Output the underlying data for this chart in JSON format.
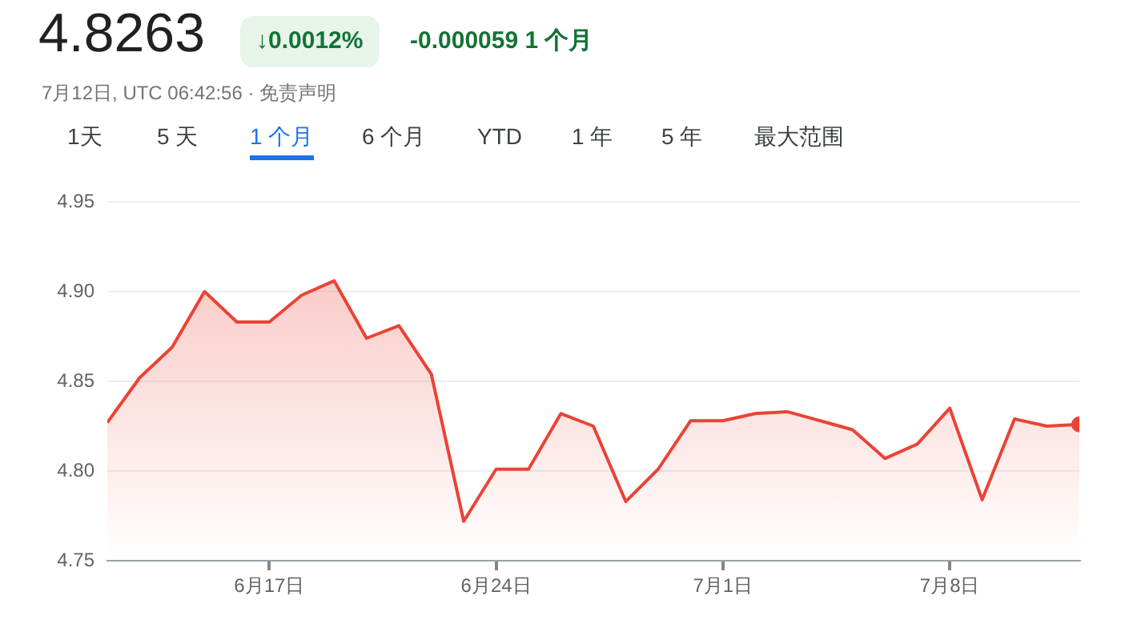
{
  "chart_data": {
    "type": "area",
    "title": "4.8263",
    "subtitle": "7月12日, UTC 06:42:56 · 免责声明",
    "annotations": [
      "↓0.0012%",
      "-0.000059",
      "1 个月",
      "1天",
      "5 天",
      "1 个月",
      "6 个月",
      "YTD",
      "1 年",
      "5 年",
      "最大范围"
    ],
    "x": [
      "--06-12",
      "--06-13",
      "--06-14",
      "--06-15",
      "--06-16",
      "--06-17",
      "--06-18",
      "--06-19",
      "--06-20",
      "--06-21",
      "--06-22",
      "--06-23",
      "--06-24",
      "--06-25",
      "--06-26",
      "--06-27",
      "--06-28",
      "--06-29",
      "--06-30",
      "--07-01",
      "--07-02",
      "--07-03",
      "--07-04",
      "--07-05",
      "--07-06",
      "--07-07",
      "--07-08",
      "--07-09",
      "--07-10",
      "--07-11",
      "--07-12"
    ],
    "series": [
      {
        "color": "#ea4335",
        "values": [
          4.827,
          4.852,
          4.869,
          4.9,
          4.883,
          4.883,
          4.898,
          4.906,
          4.874,
          4.881,
          4.854,
          4.772,
          4.801,
          4.801,
          4.832,
          4.825,
          4.783,
          4.801,
          4.828,
          4.828,
          4.832,
          4.833,
          4.828,
          4.823,
          4.807,
          4.815,
          4.835,
          4.784,
          4.829,
          4.825,
          4.826
        ]
      }
    ],
    "xlim": [
      "--06-12",
      "--07-12"
    ],
    "xticks": [
      {
        "value": "--06-17",
        "label": "6月17日"
      },
      {
        "value": "--06-24",
        "label": "6月24日"
      },
      {
        "value": "--07-01",
        "label": "7月1日"
      },
      {
        "value": "--07-08",
        "label": "7月8日"
      }
    ],
    "ylim": [
      4.75,
      4.95
    ],
    "yticks": [
      {
        "value": 4.75,
        "label": "4.75"
      },
      {
        "value": 4.8,
        "label": "4.80"
      },
      {
        "value": 4.85,
        "label": "4.85"
      },
      {
        "value": 4.9,
        "label": "4.90"
      },
      {
        "value": 4.95,
        "label": "4.95"
      }
    ],
    "grid": "y",
    "legend": false
  }
}
